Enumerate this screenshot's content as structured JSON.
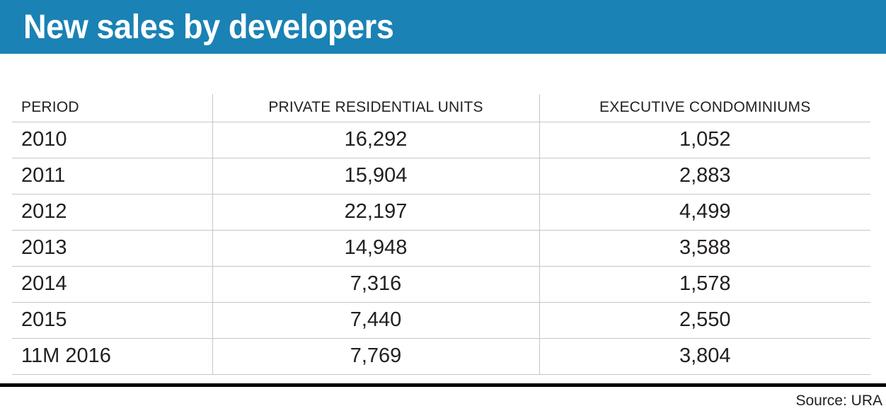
{
  "title": "New sales by developers",
  "source": "Source: URA",
  "colors": {
    "banner_blue": "#1a82b4",
    "text": "#231f20",
    "grid_line": "#c6c6c6",
    "footer_rule": "#000000"
  },
  "table": {
    "columns": [
      "PERIOD",
      "PRIVATE RESIDENTIAL UNITS",
      "EXECUTIVE CONDOMINIUMS"
    ],
    "rows": [
      {
        "period": "2010",
        "private_residential": "16,292",
        "executive_condo": "1,052"
      },
      {
        "period": "2011",
        "private_residential": "15,904",
        "executive_condo": "2,883"
      },
      {
        "period": "2012",
        "private_residential": "22,197",
        "executive_condo": "4,499"
      },
      {
        "period": "2013",
        "private_residential": "14,948",
        "executive_condo": "3,588"
      },
      {
        "period": "2014",
        "private_residential": "7,316",
        "executive_condo": "1,578"
      },
      {
        "period": "2015",
        "private_residential": "7,440",
        "executive_condo": "2,550"
      },
      {
        "period": "11M 2016",
        "private_residential": "7,769",
        "executive_condo": "3,804"
      }
    ]
  },
  "chart_data": {
    "type": "table",
    "title": "New sales by developers",
    "categories": [
      "2010",
      "2011",
      "2012",
      "2013",
      "2014",
      "2015",
      "11M 2016"
    ],
    "series": [
      {
        "name": "Private residential units",
        "values": [
          16292,
          15904,
          22197,
          14948,
          7316,
          7440,
          7769
        ]
      },
      {
        "name": "Executive condominiums",
        "values": [
          1052,
          2883,
          4499,
          3588,
          1578,
          2550,
          3804
        ]
      }
    ],
    "source": "URA"
  }
}
